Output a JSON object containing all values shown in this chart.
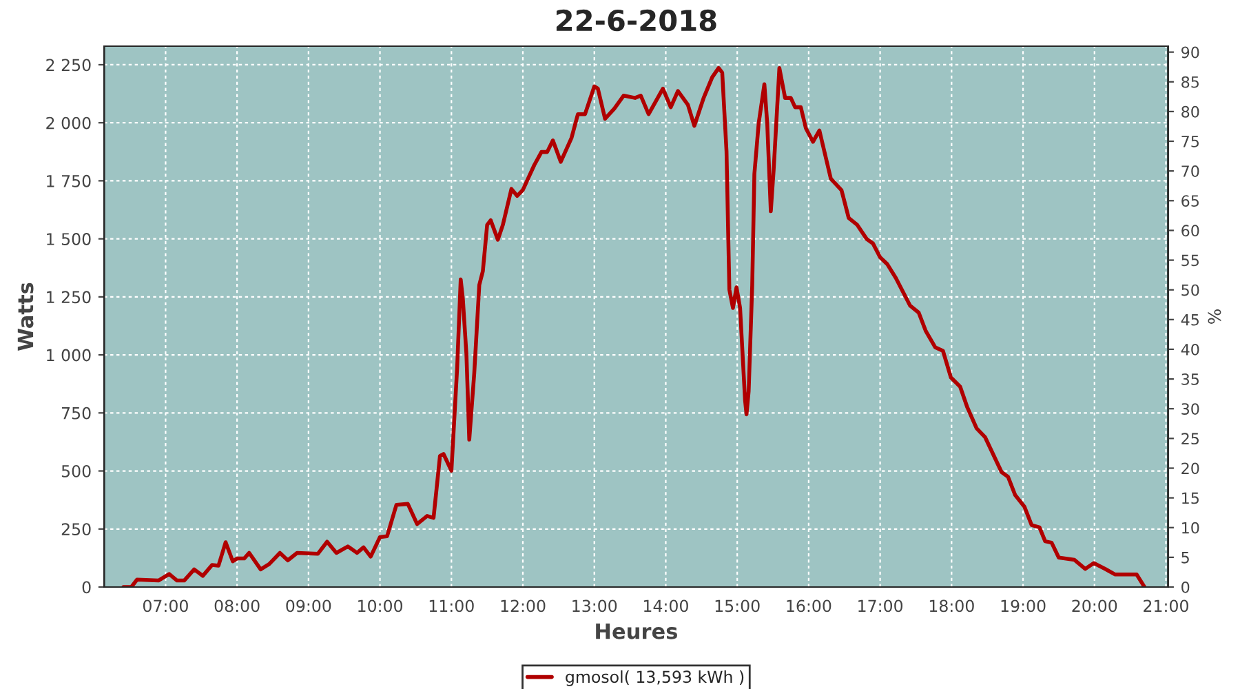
{
  "chart_data": {
    "type": "line",
    "title": "22-6-2018",
    "xlabel": "Heures",
    "ylabel": "Watts",
    "y2label": "%",
    "xlim": [
      6.14,
      21.03
    ],
    "ylim": [
      0,
      2330
    ],
    "y2lim": [
      0,
      91
    ],
    "xticks": [
      {
        "value": 7,
        "label": "07:00"
      },
      {
        "value": 8,
        "label": "08:00"
      },
      {
        "value": 9,
        "label": "09:00"
      },
      {
        "value": 10,
        "label": "10:00"
      },
      {
        "value": 11,
        "label": "11:00"
      },
      {
        "value": 12,
        "label": "12:00"
      },
      {
        "value": 13,
        "label": "13:00"
      },
      {
        "value": 14,
        "label": "14:00"
      },
      {
        "value": 15,
        "label": "15:00"
      },
      {
        "value": 16,
        "label": "16:00"
      },
      {
        "value": 17,
        "label": "17:00"
      },
      {
        "value": 18,
        "label": "18:00"
      },
      {
        "value": 19,
        "label": "19:00"
      },
      {
        "value": 20,
        "label": "20:00"
      },
      {
        "value": 21,
        "label": "21:00"
      }
    ],
    "yticks": [
      0,
      250,
      500,
      750,
      {
        "value": 1000,
        "label": "1 000"
      },
      {
        "value": 1250,
        "label": "1 250"
      },
      {
        "value": 1500,
        "label": "1 500"
      },
      {
        "value": 1750,
        "label": "1 750"
      },
      {
        "value": 2000,
        "label": "2 000"
      },
      {
        "value": 2250,
        "label": "2 250"
      }
    ],
    "y2ticks": [
      0,
      5,
      10,
      15,
      20,
      25,
      30,
      35,
      40,
      45,
      50,
      55,
      60,
      65,
      70,
      75,
      80,
      85,
      90
    ],
    "grid": true,
    "legend": "bottom",
    "marker": "none",
    "line_style": "solid",
    "series": [
      {
        "name": "gmosol( 13,593 kWh )",
        "color": "#b00000",
        "x": [
          6.41,
          6.52,
          6.6,
          6.9,
          7.05,
          7.16,
          7.26,
          7.4,
          7.52,
          7.65,
          7.74,
          7.84,
          7.94,
          8.0,
          8.1,
          8.17,
          8.33,
          8.45,
          8.6,
          8.71,
          8.84,
          9.13,
          9.26,
          9.39,
          9.55,
          9.68,
          9.77,
          9.87,
          10.0,
          10.1,
          10.23,
          10.39,
          10.52,
          10.66,
          10.75,
          10.84,
          10.89,
          11.0,
          11.08,
          11.13,
          11.16,
          11.21,
          11.25,
          11.32,
          11.39,
          11.44,
          11.5,
          11.55,
          11.65,
          11.72,
          11.84,
          11.92,
          12.0,
          12.16,
          12.26,
          12.34,
          12.42,
          12.53,
          12.68,
          12.77,
          12.87,
          13.0,
          13.05,
          13.15,
          13.28,
          13.41,
          13.57,
          13.65,
          13.76,
          13.96,
          14.07,
          14.17,
          14.31,
          14.4,
          14.53,
          14.65,
          14.74,
          14.79,
          14.85,
          14.89,
          14.94,
          14.99,
          15.04,
          15.11,
          15.13,
          15.16,
          15.21,
          15.24,
          15.3,
          15.38,
          15.42,
          15.47,
          15.51,
          15.59,
          15.67,
          15.75,
          15.81,
          15.89,
          15.96,
          16.06,
          16.15,
          16.31,
          16.46,
          16.56,
          16.68,
          16.81,
          16.9,
          17.0,
          17.1,
          17.22,
          17.42,
          17.54,
          17.64,
          17.77,
          17.88,
          17.99,
          18.12,
          18.22,
          18.35,
          18.47,
          18.7,
          18.79,
          18.89,
          19.02,
          19.12,
          19.23,
          19.31,
          19.4,
          19.5,
          19.72,
          19.87,
          19.99,
          20.15,
          20.29,
          20.59,
          20.7
        ],
        "values": [
          0,
          0,
          32,
          28,
          56,
          28,
          28,
          76,
          48,
          95,
          92,
          193,
          111,
          123,
          123,
          147,
          76,
          99,
          147,
          115,
          147,
          143,
          195,
          147,
          175,
          147,
          171,
          131,
          215,
          219,
          354,
          358,
          271,
          306,
          298,
          565,
          573,
          501,
          943,
          1325,
          1241,
          1003,
          635,
          923,
          1301,
          1361,
          1560,
          1580,
          1496,
          1560,
          1715,
          1685,
          1711,
          1818,
          1874,
          1874,
          1924,
          1832,
          1934,
          2037,
          2037,
          2157,
          2147,
          2017,
          2061,
          2117,
          2107,
          2117,
          2037,
          2147,
          2067,
          2137,
          2077,
          1987,
          2107,
          2196,
          2236,
          2216,
          1878,
          1281,
          1202,
          1291,
          1202,
          804,
          744,
          843,
          1301,
          1779,
          1997,
          2166,
          1997,
          1619,
          1798,
          2236,
          2107,
          2107,
          2067,
          2067,
          1977,
          1918,
          1967,
          1759,
          1709,
          1590,
          1560,
          1500,
          1480,
          1420,
          1391,
          1331,
          1212,
          1182,
          1102,
          1033,
          1017,
          903,
          863,
          774,
          684,
          645,
          495,
          475,
          396,
          346,
          267,
          257,
          197,
          191,
          127,
          117,
          78,
          103,
          78,
          54,
          54,
          0
        ]
      }
    ]
  }
}
